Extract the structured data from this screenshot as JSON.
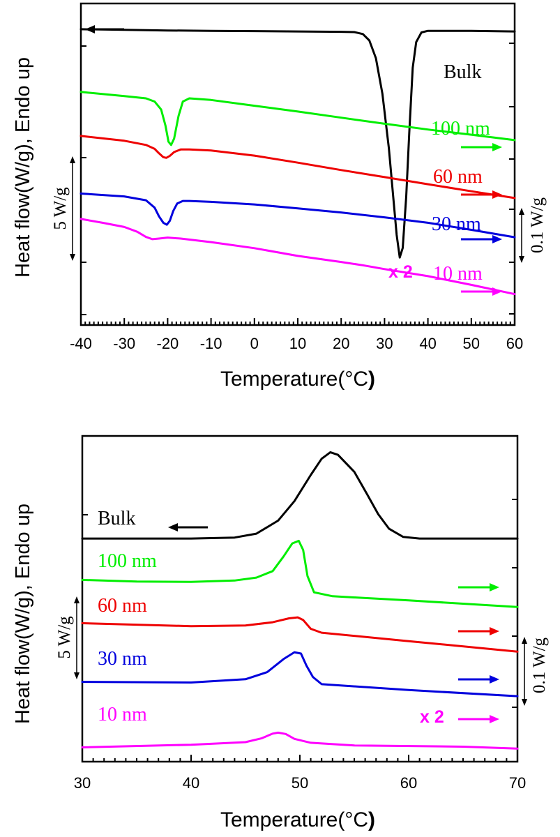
{
  "chart_data": [
    {
      "type": "line",
      "panel": "top",
      "xlabel_main": "Temperature(",
      "xlabel_unit": "°C",
      "xlabel_close": ")",
      "ylabel": "Heat flow(W/g), Endo up",
      "left_scale_label": "5 W/g",
      "right_scale_label": "0.1 W/g",
      "xlim": [
        -40,
        60
      ],
      "xticks": [
        -40,
        -30,
        -20,
        -10,
        0,
        10,
        20,
        30,
        40,
        50,
        60
      ],
      "x_tick_labels": [
        "-40",
        "-30",
        "-20",
        "-10",
        "0",
        "10",
        "20",
        "30",
        "40",
        "50",
        "60"
      ],
      "ylim": [
        0,
        100
      ],
      "annotations": {
        "multiplier": "x 2"
      },
      "series": [
        {
          "name": "Bulk",
          "color": "#000000",
          "arrow": "left",
          "points": [
            [
              -40,
              92.0
            ],
            [
              -30,
              91.8
            ],
            [
              -20,
              91.6
            ],
            [
              -10,
              91.5
            ],
            [
              0,
              91.4
            ],
            [
              10,
              91.3
            ],
            [
              20,
              91.2
            ],
            [
              23,
              91.1
            ],
            [
              25,
              90.5
            ],
            [
              26.5,
              88.5
            ],
            [
              28,
              83
            ],
            [
              29.5,
              72
            ],
            [
              31,
              55
            ],
            [
              32,
              40
            ],
            [
              32.8,
              28
            ],
            [
              33.5,
              21
            ],
            [
              34.2,
              24
            ],
            [
              35,
              40
            ],
            [
              35.7,
              60
            ],
            [
              36.5,
              80
            ],
            [
              37.3,
              88
            ],
            [
              38.5,
              91
            ],
            [
              40,
              91.5
            ],
            [
              50,
              91.5
            ],
            [
              60,
              91.3
            ]
          ]
        },
        {
          "name": "100 nm",
          "color": "#00ee00",
          "arrow": "right",
          "points": [
            [
              -40,
              72.5
            ],
            [
              -30,
              71.2
            ],
            [
              -25,
              70.5
            ],
            [
              -23,
              69.5
            ],
            [
              -21.5,
              67
            ],
            [
              -20.5,
              62
            ],
            [
              -19.8,
              57
            ],
            [
              -19.2,
              56
            ],
            [
              -18.5,
              58
            ],
            [
              -17.5,
              65
            ],
            [
              -16.5,
              69.5
            ],
            [
              -15,
              70.5
            ],
            [
              -10,
              70
            ],
            [
              0,
              68.2
            ],
            [
              10,
              66.4
            ],
            [
              20,
              64.5
            ],
            [
              30,
              62.6
            ],
            [
              40,
              60.8
            ],
            [
              50,
              59.2
            ],
            [
              60,
              57.5
            ]
          ]
        },
        {
          "name": "60 nm",
          "color": "#ee0000",
          "arrow": "right",
          "points": [
            [
              -40,
              58.8
            ],
            [
              -30,
              57.3
            ],
            [
              -25,
              56
            ],
            [
              -23,
              54.8
            ],
            [
              -22,
              53.4
            ],
            [
              -21,
              52.2
            ],
            [
              -20.3,
              52.0
            ],
            [
              -19.5,
              52.6
            ],
            [
              -18.5,
              53.8
            ],
            [
              -17,
              54.6
            ],
            [
              -15,
              54.6
            ],
            [
              -10,
              54.3
            ],
            [
              0,
              52.7
            ],
            [
              10,
              50.5
            ],
            [
              20,
              48.2
            ],
            [
              30,
              46.0
            ],
            [
              40,
              43.8
            ],
            [
              50,
              41.6
            ],
            [
              60,
              39.5
            ]
          ]
        },
        {
          "name": "30 nm",
          "color": "#0000dd",
          "arrow": "right",
          "points": [
            [
              -40,
              40.9
            ],
            [
              -30,
              40.0
            ],
            [
              -25,
              38.8
            ],
            [
              -23,
              36.5
            ],
            [
              -22,
              33.8
            ],
            [
              -21,
              31.8
            ],
            [
              -20.2,
              31.2
            ],
            [
              -19.5,
              32.4
            ],
            [
              -18.7,
              35.5
            ],
            [
              -17.8,
              37.8
            ],
            [
              -16.5,
              38.6
            ],
            [
              -15,
              38.6
            ],
            [
              -10,
              38.3
            ],
            [
              0,
              37.5
            ],
            [
              10,
              36.3
            ],
            [
              20,
              35.0
            ],
            [
              30,
              33.5
            ],
            [
              40,
              31.8
            ],
            [
              50,
              29.6
            ],
            [
              60,
              27.3
            ]
          ]
        },
        {
          "name": "10 nm",
          "color": "#ff00ff",
          "arrow": "right",
          "points": [
            [
              -40,
              33.0
            ],
            [
              -35,
              31.8
            ],
            [
              -30,
              30.5
            ],
            [
              -27,
              29.0
            ],
            [
              -25,
              27.4
            ],
            [
              -23.5,
              26.7
            ],
            [
              -22,
              26.9
            ],
            [
              -20,
              27.2
            ],
            [
              -17,
              26.9
            ],
            [
              -10,
              25.8
            ],
            [
              0,
              23.9
            ],
            [
              10,
              21.5
            ],
            [
              20,
              19.6
            ],
            [
              25,
              18.6
            ],
            [
              30,
              17.4
            ],
            [
              40,
              15.2
            ],
            [
              50,
              12.5
            ],
            [
              60,
              9.6
            ]
          ]
        }
      ]
    },
    {
      "type": "line",
      "panel": "bottom",
      "xlabel_main": "Temperature(",
      "xlabel_unit": "°C",
      "xlabel_close": ")",
      "ylabel": "Heat flow(W/g), Endo up",
      "left_scale_label": "5 W/g",
      "right_scale_label": "0.1 W/g",
      "xlim": [
        30,
        70
      ],
      "xticks": [
        30,
        40,
        50,
        60,
        70
      ],
      "x_tick_labels": [
        "30",
        "40",
        "50",
        "60",
        "70"
      ],
      "ylim": [
        0,
        100
      ],
      "annotations": {
        "multiplier": "x 2"
      },
      "series": [
        {
          "name": "Bulk",
          "color": "#000000",
          "arrow": "left",
          "points": [
            [
              30,
              68.5
            ],
            [
              40,
              68.5
            ],
            [
              44,
              68.8
            ],
            [
              46,
              70
            ],
            [
              48,
              74
            ],
            [
              49.5,
              80
            ],
            [
              51,
              88
            ],
            [
              52,
              93
            ],
            [
              52.8,
              95
            ],
            [
              53.5,
              94.2
            ],
            [
              55,
              89
            ],
            [
              56.2,
              82
            ],
            [
              57.2,
              76
            ],
            [
              58.2,
              71.5
            ],
            [
              59.5,
              69
            ],
            [
              61,
              68.5
            ],
            [
              70,
              68.5
            ]
          ]
        },
        {
          "name": "100 nm",
          "color": "#00ee00",
          "arrow": "right",
          "points": [
            [
              30,
              55.8
            ],
            [
              35,
              55.3
            ],
            [
              40,
              55.2
            ],
            [
              44,
              55.6
            ],
            [
              46,
              56.5
            ],
            [
              47.5,
              58.5
            ],
            [
              48.5,
              63
            ],
            [
              49.3,
              67
            ],
            [
              49.9,
              67.8
            ],
            [
              50.3,
              65
            ],
            [
              50.7,
              57
            ],
            [
              51.3,
              52
            ],
            [
              53,
              50.8
            ],
            [
              60,
              49.5
            ],
            [
              70,
              47.5
            ]
          ]
        },
        {
          "name": "60 nm",
          "color": "#ee0000",
          "arrow": "right",
          "points": [
            [
              30,
              42.5
            ],
            [
              40,
              41.6
            ],
            [
              45,
              41.8
            ],
            [
              47.5,
              42.8
            ],
            [
              49,
              44
            ],
            [
              49.8,
              44.3
            ],
            [
              50.3,
              43.5
            ],
            [
              51,
              40.8
            ],
            [
              52,
              39.6
            ],
            [
              60,
              37.0
            ],
            [
              70,
              33.8
            ]
          ]
        },
        {
          "name": "30 nm",
          "color": "#0000dd",
          "arrow": "right",
          "points": [
            [
              30,
              24.5
            ],
            [
              40,
              24.3
            ],
            [
              45,
              25.3
            ],
            [
              47,
              27.5
            ],
            [
              48.5,
              31.5
            ],
            [
              49.5,
              33.6
            ],
            [
              50.1,
              33.2
            ],
            [
              50.6,
              29.5
            ],
            [
              51.2,
              26
            ],
            [
              52,
              23.8
            ],
            [
              60,
              22.0
            ],
            [
              70,
              20.1
            ]
          ]
        },
        {
          "name": "10 nm",
          "color": "#ff00ff",
          "arrow": "right",
          "points": [
            [
              30,
              4.4
            ],
            [
              40,
              5.2
            ],
            [
              45,
              6.0
            ],
            [
              46.5,
              7.2
            ],
            [
              47.5,
              8.6
            ],
            [
              48,
              8.9
            ],
            [
              48.7,
              8.5
            ],
            [
              49.5,
              7.0
            ],
            [
              51,
              5.8
            ],
            [
              55,
              5.0
            ],
            [
              65,
              4.6
            ],
            [
              70,
              4.0
            ]
          ]
        }
      ]
    }
  ]
}
